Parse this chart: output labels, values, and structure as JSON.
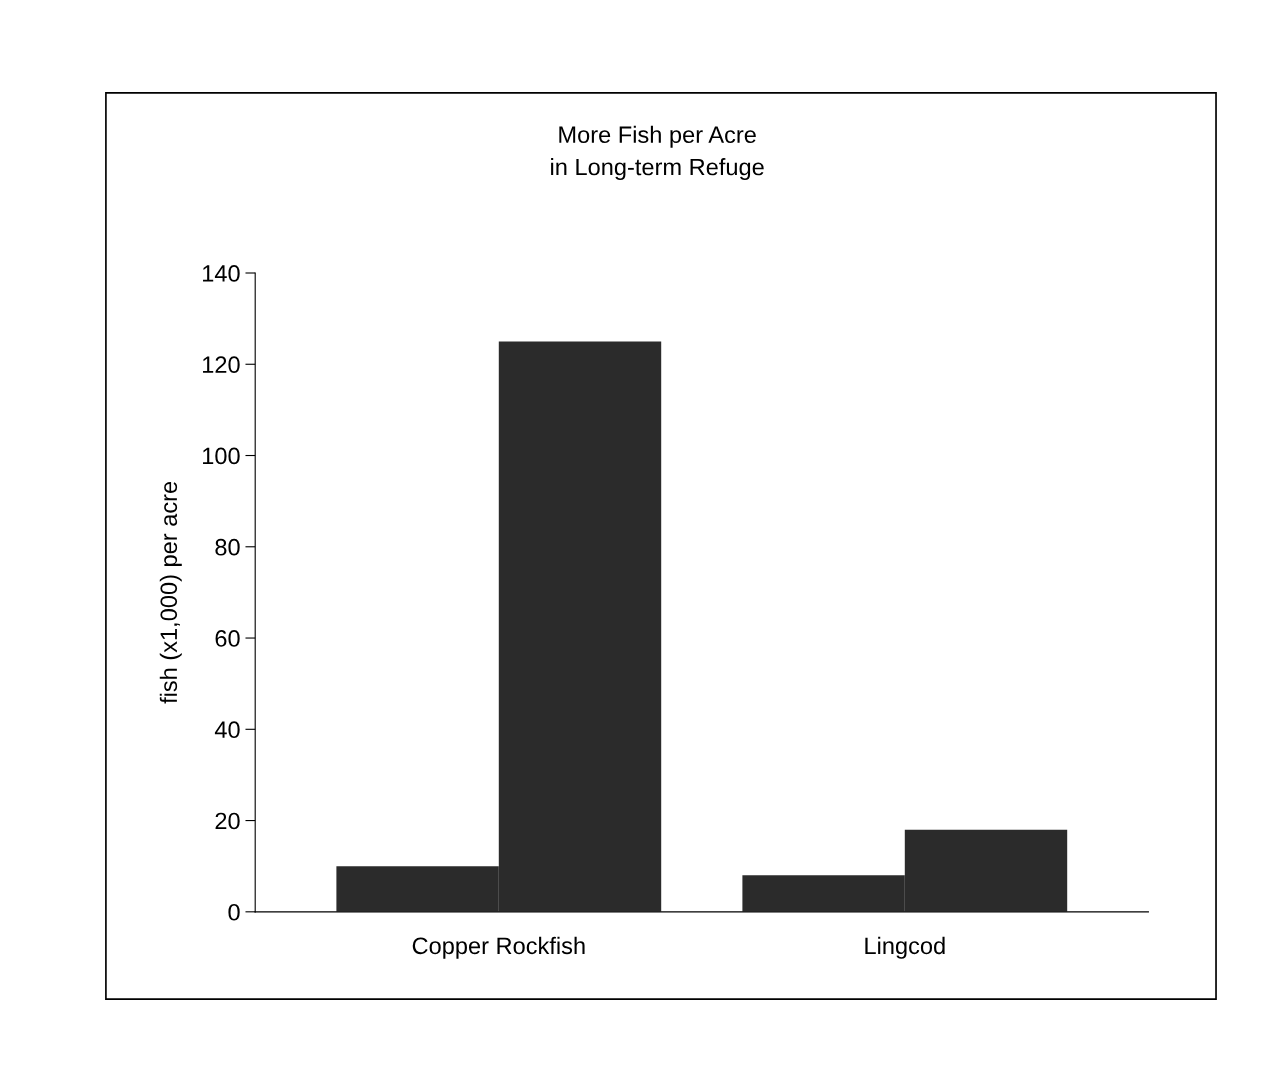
{
  "chart_data": {
    "type": "bar",
    "title": "More Fish per Acre\nin Long-term Refuge",
    "ylabel": "fish (x1,000) per acre",
    "categories": [
      "Copper Rockfish",
      "Lingcod"
    ],
    "series": [
      {
        "color": "#2b2b2b",
        "values": [
          10,
          8
        ]
      },
      {
        "color": "#2b2b2b",
        "values": [
          125,
          18
        ]
      }
    ],
    "ylim": [
      0,
      140
    ],
    "yticks": [
      0,
      20,
      40,
      60,
      80,
      100,
      120,
      140
    ],
    "grid": false,
    "legend": false
  }
}
